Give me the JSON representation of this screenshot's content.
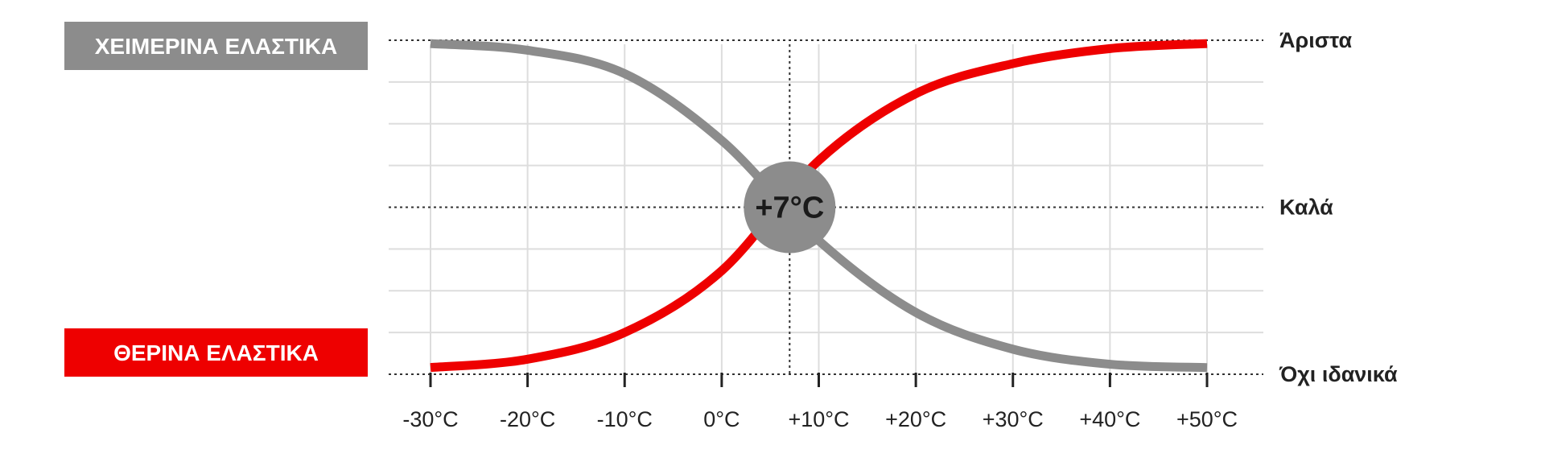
{
  "chart_data": {
    "type": "line",
    "title": "",
    "xlabel": "",
    "ylabel": "",
    "x": [
      -30,
      -20,
      -10,
      0,
      10,
      20,
      30,
      40,
      50
    ],
    "x_tick_labels": [
      "-30°C",
      "-20°C",
      "-10°C",
      "0°C",
      "+10°C",
      "+20°C",
      "+30°C",
      "+40°C",
      "+50°C"
    ],
    "xlim": [
      -30,
      50
    ],
    "y_levels": [
      {
        "label": "Άριστα",
        "value": 3
      },
      {
        "label": "Καλά",
        "value": 2
      },
      {
        "label": "Όχι ιδανικά",
        "value": 1
      }
    ],
    "ylim": [
      1,
      3
    ],
    "grid": true,
    "series": [
      {
        "name": "ΧΕΙΜΕΡΙΝΑ ΕΛΑΣΤΙΚΑ",
        "color": "#8c8c8c",
        "values": [
          2.98,
          2.94,
          2.8,
          2.4,
          1.8,
          1.37,
          1.15,
          1.06,
          1.04
        ]
      },
      {
        "name": "ΘΕΡΙΝΑ ΕΛΑΣΤΙΚΑ",
        "color": "#ee0000",
        "values": [
          1.04,
          1.09,
          1.25,
          1.62,
          2.28,
          2.68,
          2.86,
          2.95,
          2.98
        ]
      }
    ],
    "crossover": {
      "x": 7,
      "label": "+7°C",
      "color": "#8c8c8c"
    },
    "legend": "left"
  }
}
